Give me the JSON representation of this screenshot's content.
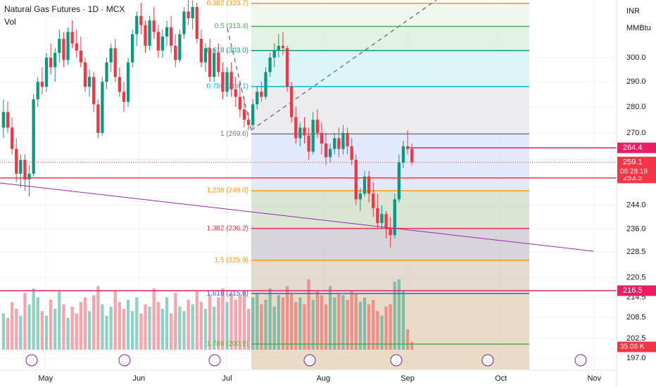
{
  "chart_data": {
    "type": "candlestick",
    "title": "Natural Gas Futures · 1D · MCX",
    "volume_label": "Vol",
    "currency": "INR",
    "unit": "MMBtu",
    "log_scale": true,
    "grid": true,
    "up_color": "#089981",
    "down_color": "#f23645",
    "ylim": [
      193.9,
      325.2
    ],
    "yticks": [
      {
        "value": 300,
        "label": "300.0"
      },
      {
        "value": 290,
        "label": "290.0"
      },
      {
        "value": 280,
        "label": "280.0"
      },
      {
        "value": 270,
        "label": "270.0"
      },
      {
        "value": 244,
        "label": "244.0"
      },
      {
        "value": 236,
        "label": "236.0"
      },
      228.5,
      220.5,
      214.5,
      208.5,
      202.5,
      {
        "value": 197,
        "label": "197.0"
      }
    ],
    "xlim": [
      -0.8,
      142.6
    ],
    "xticks": [
      {
        "value": 9.8,
        "label": "May"
      },
      {
        "value": 31.5,
        "label": "Jun"
      },
      {
        "value": 52,
        "label": "Jul"
      },
      {
        "value": 74.4,
        "label": "Aug"
      },
      {
        "value": 94,
        "label": "Sep"
      },
      {
        "value": 115.7,
        "label": "Oct"
      },
      {
        "value": 137.4,
        "label": "Nov"
      }
    ],
    "ohlc": [
      [
        272,
        283,
        268,
        278
      ],
      [
        278,
        282,
        270,
        272
      ],
      [
        272,
        276,
        262,
        264
      ],
      [
        264,
        268,
        252,
        255
      ],
      [
        255,
        262,
        250,
        260
      ],
      [
        260,
        262,
        249,
        253
      ],
      [
        253,
        258,
        247,
        255
      ],
      [
        255,
        285,
        254,
        283
      ],
      [
        283,
        292,
        280,
        290
      ],
      [
        290,
        296,
        285,
        288
      ],
      [
        288,
        302,
        286,
        300
      ],
      [
        300,
        306,
        293,
        296
      ],
      [
        296,
        304,
        290,
        302
      ],
      [
        302,
        312,
        298,
        308
      ],
      [
        308,
        311,
        296,
        299
      ],
      [
        299,
        313,
        297,
        311
      ],
      [
        311,
        316,
        304,
        306
      ],
      [
        306,
        312,
        300,
        303
      ],
      [
        303,
        309,
        296,
        298
      ],
      [
        298,
        300,
        286,
        288
      ],
      [
        288,
        295,
        284,
        292
      ],
      [
        292,
        294,
        278,
        281
      ],
      [
        281,
        283,
        268,
        270
      ],
      [
        270,
        292,
        269,
        290
      ],
      [
        290,
        300,
        287,
        298
      ],
      [
        298,
        306,
        294,
        304
      ],
      [
        304,
        308,
        290,
        292
      ],
      [
        292,
        296,
        284,
        286
      ],
      [
        286,
        290,
        278,
        282
      ],
      [
        282,
        300,
        280,
        298
      ],
      [
        298,
        312,
        296,
        310
      ],
      [
        310,
        320,
        305,
        318
      ],
      [
        318,
        324,
        310,
        314
      ],
      [
        314,
        316,
        302,
        305
      ],
      [
        305,
        318,
        303,
        316
      ],
      [
        316,
        322,
        308,
        311
      ],
      [
        311,
        314,
        300,
        303
      ],
      [
        303,
        312,
        300,
        309
      ],
      [
        309,
        316,
        305,
        313
      ],
      [
        313,
        318,
        302,
        305
      ],
      [
        305,
        310,
        296,
        299
      ],
      [
        299,
        312,
        298,
        310
      ],
      [
        310,
        322,
        308,
        320
      ],
      [
        320,
        326,
        314,
        317
      ],
      [
        317,
        325,
        312,
        322
      ],
      [
        322,
        324,
        306,
        308
      ],
      [
        308,
        312,
        296,
        298
      ],
      [
        298,
        306,
        294,
        304
      ],
      [
        304,
        308,
        290,
        292
      ],
      [
        292,
        304,
        290,
        302
      ],
      [
        302,
        306,
        292,
        294
      ],
      [
        294,
        298,
        283,
        286
      ],
      [
        286,
        296,
        284,
        294
      ],
      [
        294,
        298,
        284,
        287
      ],
      [
        287,
        292,
        280,
        284
      ],
      [
        284,
        290,
        276,
        279
      ],
      [
        279,
        284,
        272,
        275
      ],
      [
        275,
        278,
        271,
        273
      ],
      [
        273,
        283,
        272,
        281
      ],
      [
        281,
        288,
        279,
        286
      ],
      [
        286,
        290,
        282,
        284
      ],
      [
        284,
        296,
        283,
        294
      ],
      [
        294,
        302,
        292,
        300
      ],
      [
        300,
        306,
        296,
        303
      ],
      [
        303,
        310,
        300,
        305
      ],
      [
        305,
        311,
        301,
        304
      ],
      [
        304,
        305,
        286,
        288
      ],
      [
        288,
        290,
        274,
        276
      ],
      [
        276,
        280,
        266,
        268
      ],
      [
        268,
        274,
        265,
        272
      ],
      [
        272,
        276,
        266,
        269
      ],
      [
        269,
        272,
        260,
        263
      ],
      [
        263,
        278,
        262,
        275
      ],
      [
        275,
        279,
        268,
        270
      ],
      [
        270,
        274,
        262,
        266
      ],
      [
        266,
        270,
        258,
        261
      ],
      [
        261,
        266,
        259,
        264
      ],
      [
        264,
        270,
        262,
        268
      ],
      [
        268,
        272,
        261,
        264
      ],
      [
        264,
        273,
        262,
        270
      ],
      [
        270,
        272,
        262,
        265
      ],
      [
        265,
        268,
        258,
        260
      ],
      [
        260,
        262,
        244,
        246
      ],
      [
        246,
        250,
        242,
        248
      ],
      [
        248,
        256,
        247,
        254
      ],
      [
        254,
        256,
        245,
        248
      ],
      [
        248,
        252,
        240,
        243
      ],
      [
        243,
        248,
        236,
        238
      ],
      [
        238,
        244,
        236,
        241
      ],
      [
        241,
        242,
        233,
        236
      ],
      [
        236,
        240,
        230,
        234
      ],
      [
        234,
        248,
        233,
        246
      ],
      [
        246,
        262,
        245,
        259
      ],
      [
        259,
        267,
        257,
        265
      ],
      [
        265,
        271,
        262,
        264
      ],
      [
        264,
        266,
        258,
        259.1
      ]
    ],
    "volume": {
      "values": [
        160,
        140,
        210,
        180,
        150,
        250,
        200,
        270,
        230,
        170,
        150,
        220,
        180,
        260,
        200,
        140,
        190,
        160,
        210,
        230,
        170,
        240,
        280,
        200,
        150,
        190,
        260,
        210,
        180,
        220,
        170,
        230,
        160,
        200,
        190,
        270,
        210,
        180,
        230,
        160,
        250,
        190,
        170,
        220,
        200,
        260,
        210,
        180,
        240,
        190,
        230,
        270,
        210,
        250,
        220,
        240,
        260,
        180,
        230,
        250,
        200,
        220,
        270,
        190,
        240,
        230,
        280,
        250,
        210,
        230,
        200,
        310,
        220,
        260,
        240,
        200,
        280,
        230,
        250,
        240,
        220,
        260,
        250,
        210,
        230,
        200,
        220,
        170,
        150,
        190,
        200,
        300,
        310,
        260,
        90,
        35.06
      ],
      "last_label": "35.06 K"
    },
    "fib_levels": [
      {
        "value": 323.7,
        "label": "0.382 (323.7)",
        "color": "#ff9800"
      },
      {
        "value": 313.4,
        "label": "0.5 (313.4)",
        "color": "#4caf50"
      },
      {
        "value": 303.0,
        "label": "0.618 (303.0)",
        "color": "#089981"
      },
      {
        "value": 288.1,
        "label": "0.786 (288.1)",
        "color": "#00bcd4"
      },
      {
        "value": 269.6,
        "label": "1 (269.6)",
        "color": "#787b86"
      },
      {
        "value": 249.0,
        "label": "1.236 (249.0)",
        "color": "#ff9800"
      },
      {
        "value": 236.2,
        "label": "1.382 (236.2)",
        "color": "#f23645"
      },
      {
        "value": 225.9,
        "label": "1.5 (225.9)",
        "color": "#ff9800"
      },
      {
        "value": 215.6,
        "label": "1.618 (215.6)",
        "color": "#2962ff"
      },
      {
        "value": 200.9,
        "label": "1.786 (200.9)",
        "color": "#4caf50"
      }
    ],
    "price_lines": [
      {
        "value": 264.4,
        "color": "#e91e63"
      },
      {
        "value": 253.5,
        "color": "#f23645"
      },
      {
        "value": 216.5,
        "color": "#e91e63"
      }
    ],
    "last_price": 259.1,
    "countdown": "06:28:18"
  }
}
